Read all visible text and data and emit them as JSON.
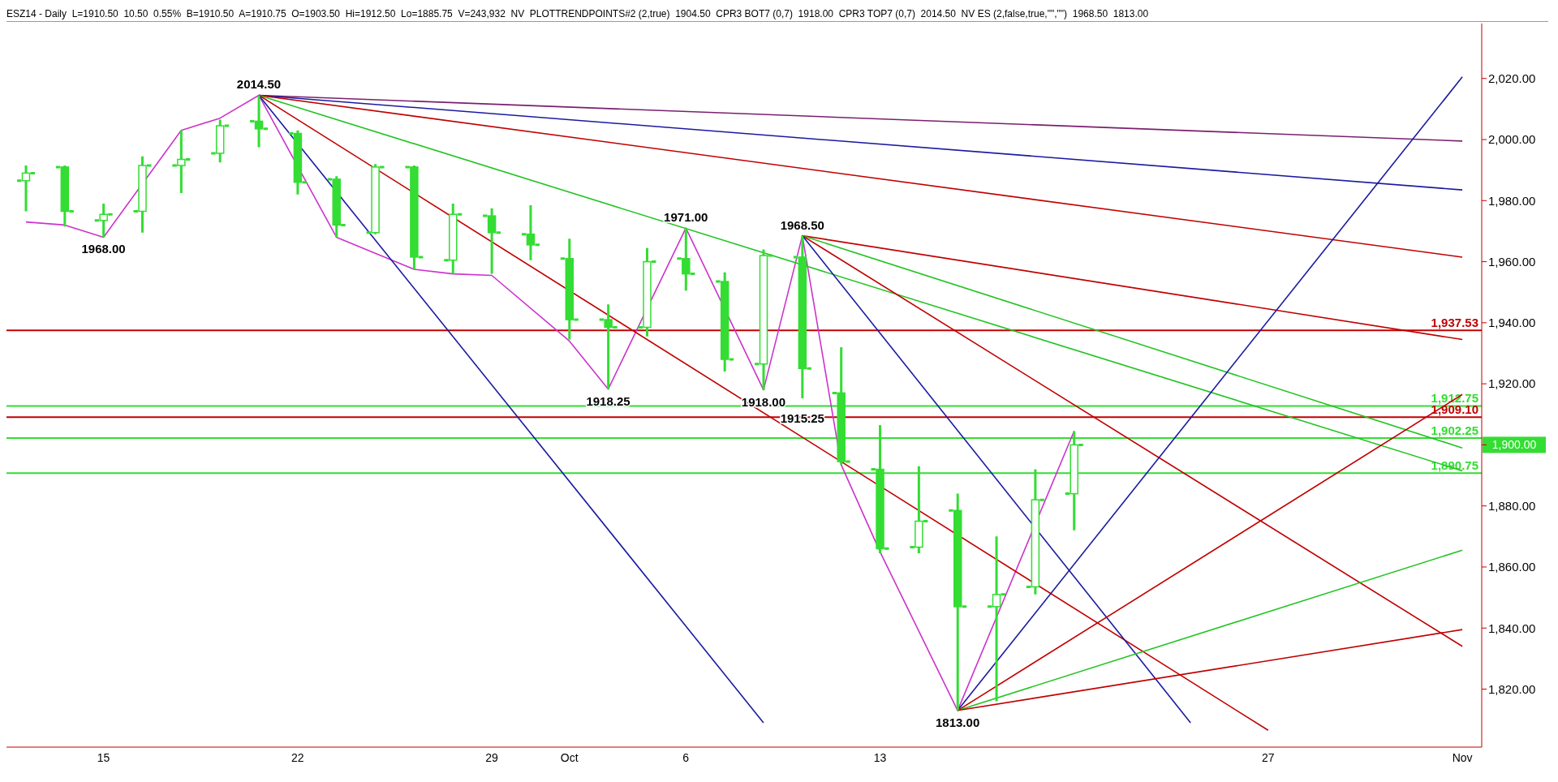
{
  "chart_data": {
    "type": "candlestick",
    "color": "#33dd33",
    "categories": [
      null,
      null,
      "15",
      null,
      null,
      null,
      null,
      "22",
      null,
      null,
      null,
      null,
      "29",
      null,
      "Oct",
      null,
      null,
      "6",
      null,
      null,
      null,
      null,
      "13",
      null,
      null,
      null,
      null,
      null,
      null,
      null,
      null,
      null,
      "27",
      null,
      null,
      null,
      null,
      "Nov"
    ],
    "ohlc": [
      [
        1986.5,
        1991.5,
        1976.5,
        1989
      ],
      [
        1991,
        1991.5,
        1971.5,
        1976.5
      ],
      [
        1973.5,
        1979,
        1968,
        1975.5
      ],
      [
        1976.5,
        1994.5,
        1969.5,
        1991.5
      ],
      [
        1991.5,
        2003,
        1982.5,
        1993.5
      ],
      [
        1995.5,
        2006.5,
        1992.5,
        2004.5
      ],
      [
        2006,
        2014.5,
        1997.5,
        2003.5
      ],
      [
        2002,
        2003,
        1982,
        1986
      ],
      [
        1987,
        1988,
        1968,
        1972
      ],
      [
        1969.5,
        1992,
        1969,
        1991
      ],
      [
        1991,
        1991.5,
        1957.5,
        1961.5
      ],
      [
        1960.5,
        1979,
        1956,
        1975.5
      ],
      [
        1975,
        1977.5,
        1956,
        1969.5
      ],
      [
        1969,
        1978.5,
        1960.5,
        1965.5
      ],
      [
        1961,
        1967.5,
        1934.5,
        1941
      ],
      [
        1941,
        1946,
        1918.25,
        1938.5
      ],
      [
        1938.5,
        1964.5,
        1935.5,
        1960
      ],
      [
        1961,
        1971,
        1950.5,
        1956
      ],
      [
        1953.5,
        1956.5,
        1924,
        1928
      ],
      [
        1926.5,
        1964,
        1918,
        1962
      ],
      [
        1961.5,
        1968.5,
        1915.25,
        1925
      ],
      [
        1917,
        1932,
        1893.5,
        1894.5
      ],
      [
        1892,
        1906.5,
        1864.5,
        1866
      ],
      [
        1866.5,
        1893,
        1864.5,
        1875
      ],
      [
        1878.5,
        1884,
        1813,
        1847
      ],
      [
        1847,
        1870,
        1816,
        1851
      ],
      [
        1853.5,
        1892,
        1851,
        1882
      ],
      [
        1884,
        1904.5,
        1872,
        1900
      ],
      null,
      null,
      null,
      null,
      null,
      null,
      null,
      null,
      null,
      null
    ],
    "series": [
      {
        "type": "line",
        "color": "#cc33cc",
        "values": [
          1973,
          1972,
          1968,
          null,
          2003,
          2007,
          2014.5,
          null,
          1968,
          null,
          1957.5,
          1956,
          1955.5,
          null,
          1934,
          1918.25,
          null,
          1971,
          null,
          1918,
          1968.5,
          1893.5,
          1865,
          null,
          1813,
          null,
          null,
          1904.5,
          null,
          null,
          null,
          null,
          null,
          null,
          null,
          null,
          null,
          null
        ],
        "value_labels": [
          null,
          null,
          "1968.00",
          null,
          null,
          null,
          "2014.50",
          null,
          null,
          null,
          null,
          null,
          null,
          null,
          null,
          "1918.25",
          null,
          "1971.00",
          null,
          "1918.00",
          "1968.50",
          null,
          null,
          null,
          "1813.00",
          null,
          null,
          null,
          null,
          null,
          null,
          null,
          null,
          null,
          null,
          null,
          null,
          null
        ]
      },
      {
        "type": "line",
        "color": "#7a1f6e",
        "values": [
          null,
          null,
          null,
          null,
          null,
          null,
          2014.5,
          null,
          null,
          null,
          null,
          null,
          null,
          null,
          null,
          null,
          null,
          null,
          null,
          null,
          null,
          null,
          null,
          null,
          null,
          null,
          null,
          null,
          null,
          null,
          null,
          null,
          null,
          null,
          null,
          null,
          null,
          1999.5
        ]
      },
      {
        "type": "line",
        "color": "#1a1aa0",
        "values": [
          null,
          null,
          null,
          null,
          null,
          null,
          2014.5,
          null,
          null,
          null,
          null,
          null,
          null,
          null,
          null,
          null,
          null,
          null,
          null,
          null,
          null,
          null,
          null,
          null,
          null,
          null,
          null,
          null,
          null,
          null,
          null,
          null,
          null,
          null,
          null,
          null,
          null,
          1983.5
        ]
      },
      {
        "type": "line",
        "color": "#c00000",
        "values": [
          null,
          null,
          null,
          null,
          null,
          null,
          2014.5,
          null,
          null,
          null,
          null,
          null,
          null,
          null,
          null,
          null,
          null,
          null,
          null,
          null,
          null,
          null,
          null,
          null,
          null,
          null,
          null,
          null,
          null,
          null,
          null,
          null,
          null,
          null,
          null,
          null,
          null,
          1961.5
        ]
      },
      {
        "type": "line",
        "color": "#22c422",
        "values": [
          null,
          null,
          null,
          null,
          null,
          null,
          2014.5,
          null,
          null,
          null,
          null,
          null,
          null,
          null,
          null,
          null,
          null,
          null,
          null,
          null,
          null,
          null,
          null,
          null,
          null,
          null,
          null,
          null,
          null,
          null,
          null,
          null,
          null,
          null,
          null,
          null,
          null,
          1891.5
        ]
      },
      {
        "type": "line",
        "color": "#c00000",
        "values": [
          null,
          null,
          null,
          null,
          null,
          null,
          2014.5,
          null,
          null,
          null,
          null,
          null,
          null,
          null,
          null,
          null,
          null,
          null,
          null,
          null,
          null,
          null,
          null,
          null,
          null,
          null,
          null,
          null,
          null,
          null,
          null,
          null,
          1806.5,
          null,
          null,
          null,
          null,
          null
        ]
      },
      {
        "type": "line",
        "color": "#1a1aa0",
        "values": [
          null,
          null,
          null,
          null,
          null,
          null,
          2014.5,
          null,
          null,
          null,
          null,
          null,
          null,
          null,
          null,
          null,
          null,
          null,
          null,
          1809,
          null,
          null,
          null,
          null,
          null,
          null,
          null,
          null,
          null,
          null,
          null,
          null,
          null,
          null,
          null,
          null,
          null,
          null
        ]
      },
      {
        "type": "line",
        "color": "#c00000",
        "values": [
          null,
          null,
          null,
          null,
          null,
          null,
          null,
          null,
          null,
          null,
          null,
          null,
          null,
          null,
          null,
          null,
          null,
          null,
          null,
          null,
          1968.5,
          null,
          null,
          null,
          null,
          null,
          null,
          null,
          null,
          null,
          null,
          null,
          null,
          null,
          null,
          null,
          null,
          1934.5
        ]
      },
      {
        "type": "line",
        "color": "#22c422",
        "values": [
          null,
          null,
          null,
          null,
          null,
          null,
          null,
          null,
          null,
          null,
          null,
          null,
          null,
          null,
          null,
          null,
          null,
          null,
          null,
          null,
          1968.5,
          null,
          null,
          null,
          null,
          null,
          null,
          null,
          null,
          null,
          null,
          null,
          null,
          null,
          null,
          null,
          null,
          1899
        ]
      },
      {
        "type": "line",
        "color": "#c00000",
        "values": [
          null,
          null,
          null,
          null,
          null,
          null,
          null,
          null,
          null,
          null,
          null,
          null,
          null,
          null,
          null,
          null,
          null,
          null,
          null,
          null,
          1968.5,
          null,
          null,
          null,
          null,
          null,
          null,
          null,
          null,
          null,
          null,
          null,
          null,
          null,
          null,
          null,
          null,
          1834
        ]
      },
      {
        "type": "line",
        "color": "#1a1aa0",
        "values": [
          null,
          null,
          null,
          null,
          null,
          null,
          null,
          null,
          null,
          null,
          null,
          null,
          null,
          null,
          null,
          null,
          null,
          null,
          null,
          null,
          1968.5,
          null,
          null,
          null,
          null,
          null,
          null,
          null,
          null,
          null,
          1809,
          null,
          null,
          null,
          null,
          null,
          null,
          null
        ]
      },
      {
        "type": "line",
        "color": "#1a1aa0",
        "values": [
          null,
          null,
          null,
          null,
          null,
          null,
          null,
          null,
          null,
          null,
          null,
          null,
          null,
          null,
          null,
          null,
          null,
          null,
          null,
          null,
          null,
          null,
          null,
          null,
          1813,
          null,
          null,
          null,
          null,
          null,
          null,
          null,
          null,
          null,
          null,
          null,
          null,
          2020.5
        ]
      },
      {
        "type": "line",
        "color": "#c00000",
        "values": [
          null,
          null,
          null,
          null,
          null,
          null,
          null,
          null,
          null,
          null,
          null,
          null,
          null,
          null,
          null,
          null,
          null,
          null,
          null,
          null,
          null,
          null,
          null,
          null,
          1813,
          null,
          null,
          null,
          null,
          null,
          null,
          null,
          null,
          null,
          null,
          null,
          null,
          1916.5
        ]
      },
      {
        "type": "line",
        "color": "#22c422",
        "values": [
          null,
          null,
          null,
          null,
          null,
          null,
          null,
          null,
          null,
          null,
          null,
          null,
          null,
          null,
          null,
          null,
          null,
          null,
          null,
          null,
          null,
          null,
          null,
          null,
          1813,
          null,
          null,
          null,
          null,
          null,
          null,
          null,
          null,
          null,
          null,
          null,
          null,
          1865.5
        ]
      },
      {
        "type": "line",
        "color": "#c00000",
        "values": [
          null,
          null,
          null,
          null,
          null,
          null,
          null,
          null,
          null,
          null,
          null,
          null,
          null,
          null,
          null,
          null,
          null,
          null,
          null,
          null,
          null,
          null,
          null,
          null,
          1813,
          null,
          null,
          null,
          null,
          null,
          null,
          null,
          null,
          null,
          null,
          null,
          null,
          1839.5
        ]
      }
    ],
    "ylim": [
      1801,
      2038
    ],
    "yticks": [
      {
        "value": 1820,
        "label": "1,820.00"
      },
      {
        "value": 1840,
        "label": "1,840.00"
      },
      {
        "value": 1860,
        "label": "1,860.00"
      },
      {
        "value": 1880,
        "label": "1,880.00"
      },
      {
        "value": 1900,
        "label": null
      },
      {
        "value": 1920,
        "label": "1,920.00"
      },
      {
        "value": 1940,
        "label": "1,940.00"
      },
      {
        "value": 1960,
        "label": "1,960.00"
      },
      {
        "value": 1980,
        "label": "1,980.00"
      },
      {
        "value": 2000,
        "label": "2,000.00"
      },
      {
        "value": 2020,
        "label": "2,020.00"
      }
    ],
    "ref_lines": [
      {
        "axis": "y",
        "value": 1937.53,
        "label": "1,937.53",
        "color": "#c00000"
      },
      {
        "axis": "y",
        "value": 1912.75,
        "label": "1,912.75",
        "color": "#33dd33"
      },
      {
        "axis": "y",
        "value": 1909.1,
        "label": "1,909.10",
        "color": "#c00000"
      },
      {
        "axis": "y",
        "value": 1902.25,
        "label": "1,902.25",
        "color": "#33dd33"
      },
      {
        "axis": "y",
        "value": 1890.75,
        "label": "1,890.75",
        "color": "#33dd33"
      }
    ],
    "title": "ESZ14 - Daily  L=1910.50  10.50  0.55%  B=1910.50  A=1910.75  O=1903.50  Hi=1912.50  Lo=1885.75  V=243,932  NV  PLOTTRENDPOINTS#2 (2,true)  1904.50  CPR3 BOT7 (0,7)  1918.00  CPR3 TOP7 (0,7)  2014.50  NV ES (2,false,true,\"\",\"\")  1968.50  1813.00",
    "annotations": [
      {
        "text": "1915.25",
        "y": 1915.25
      },
      "1,900.00"
    ]
  }
}
